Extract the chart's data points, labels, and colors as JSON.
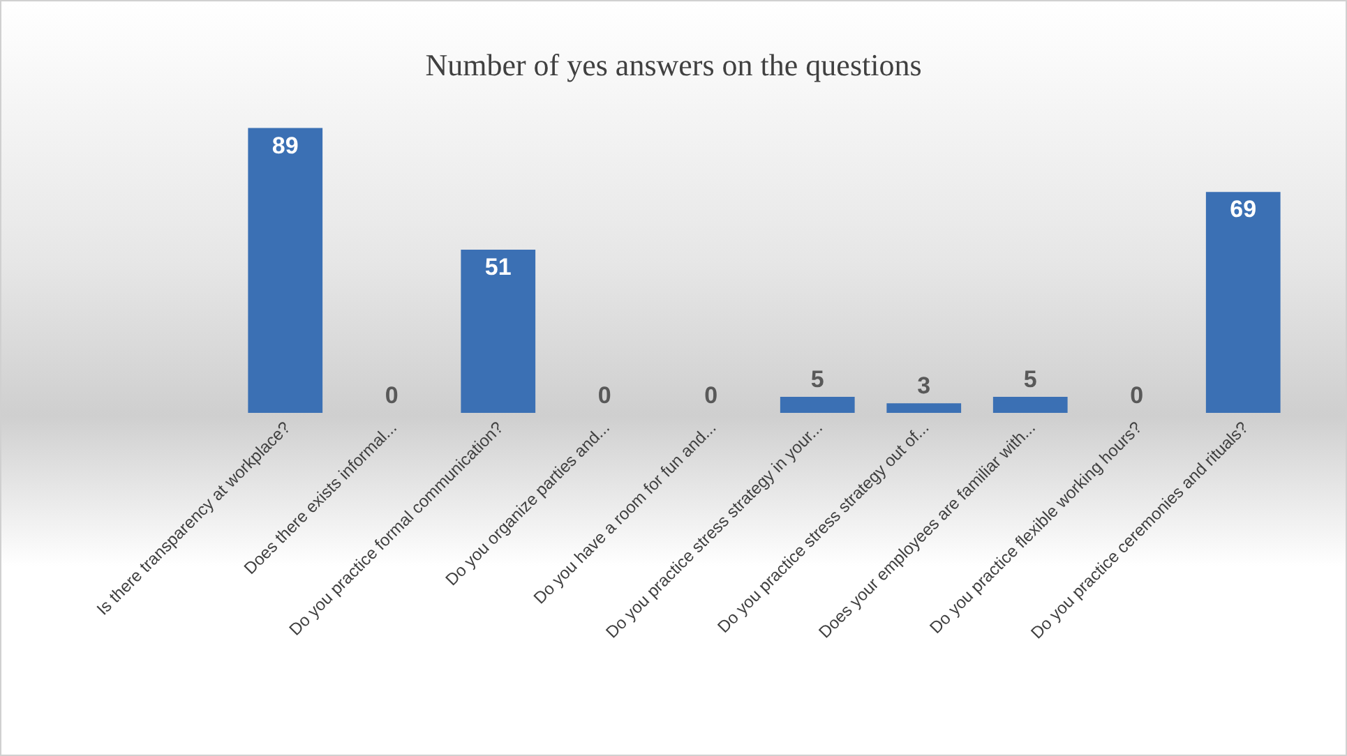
{
  "chart_data": {
    "type": "bar",
    "title": "Number of yes answers on the questions",
    "categories": [
      "Is there transparency at workplace?",
      "Does there exists informal...",
      "Do you practice formal communication?",
      "Do you organize parties and...",
      "Do you have a room for fun and...",
      "Do you practice stress strategy in your...",
      "Do you practice stress strategy out of...",
      "Does your employees are familiar with...",
      "Do you practice flexible working hours?",
      "Do you practice ceremonies and rituals?"
    ],
    "values": [
      89,
      0,
      51,
      0,
      0,
      5,
      3,
      5,
      0,
      69
    ],
    "color": "#3b70b4",
    "data_labels": true
  }
}
